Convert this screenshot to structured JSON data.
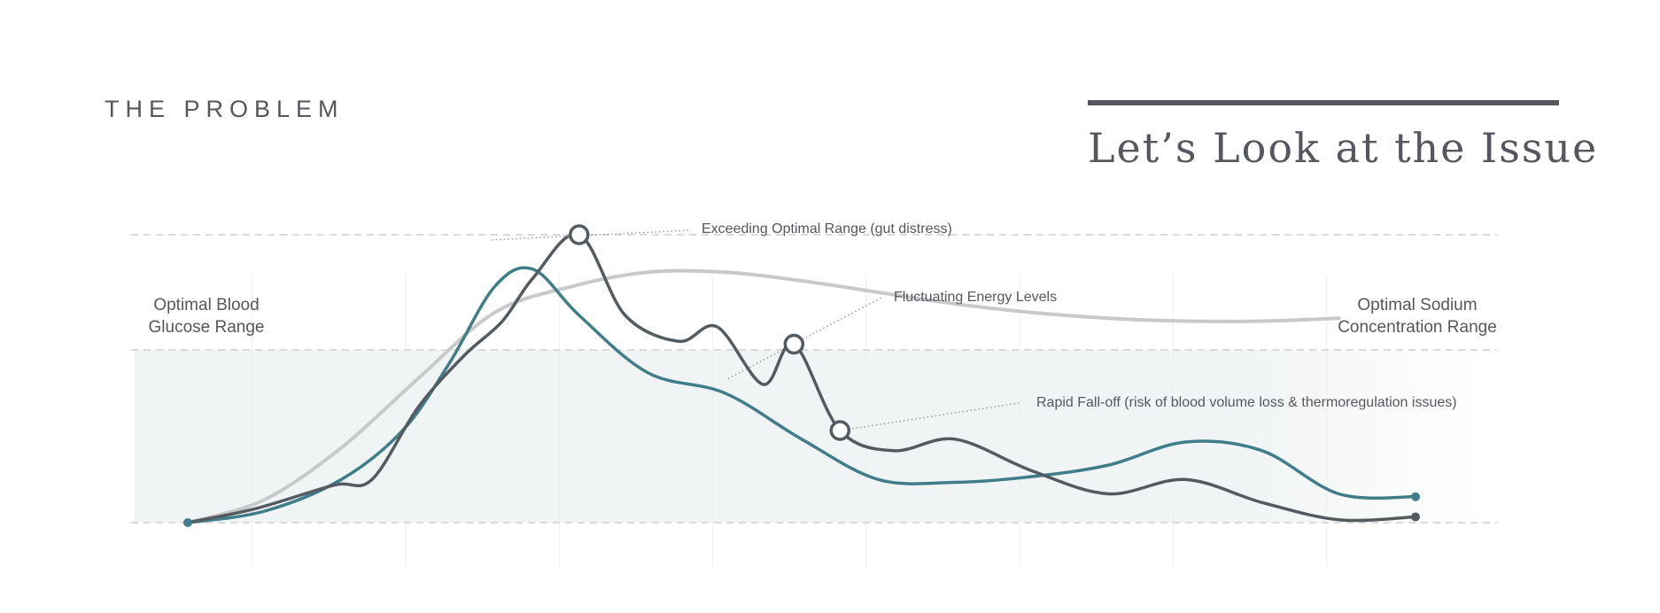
{
  "header": {
    "eyebrow": "THE PROBLEM",
    "title": "Let’s Look at the Issue"
  },
  "range_labels": {
    "left": [
      "Optimal Blood",
      "Glucose Range"
    ],
    "right": [
      "Optimal Sodium",
      "Concentration Range"
    ]
  },
  "annotations": [
    {
      "id": "peak",
      "text": "Exceeding Optimal Range (gut distress)",
      "x": 1.9,
      "y": 0.98
    },
    {
      "id": "fluctuating",
      "text": "Fluctuating Energy Levels",
      "x": 3.45,
      "y": 0.48
    },
    {
      "id": "falloff",
      "text": "Rapid Fall-off (risk of blood volume loss & thermoregulation issues)",
      "x": 4.25,
      "y": 0.32
    }
  ],
  "colors": {
    "text": "#55575f",
    "dark_series": "#545b60",
    "teal_series": "#3f7e89",
    "gray_series": "#c8c9ca",
    "grid": "#d8dadb",
    "band": "#f1f4f4"
  },
  "chart_data": {
    "type": "line",
    "title": "",
    "xlabel": "",
    "ylabel": "",
    "xlim": [
      0,
      8
    ],
    "ylim": [
      0,
      1
    ],
    "grid": {
      "vertical": true,
      "horizontal_dashed": [
        0,
        0.6,
        1.0
      ]
    },
    "optimal_band": [
      0,
      0.6
    ],
    "series": [
      {
        "id": "gray",
        "color": "#c8c9ca",
        "x": [
          0,
          0.5,
          1.0,
          1.5,
          2.0,
          2.5,
          3.0,
          3.5,
          4.0,
          4.5,
          5.0,
          5.5,
          6.0,
          6.5,
          7.0,
          7.5
        ],
        "y": [
          0,
          0.08,
          0.26,
          0.5,
          0.73,
          0.82,
          0.87,
          0.87,
          0.84,
          0.8,
          0.76,
          0.73,
          0.71,
          0.7,
          0.7,
          0.71
        ]
      },
      {
        "id": "teal",
        "color": "#3f7e89",
        "x": [
          0,
          0.5,
          1.0,
          1.4,
          1.7,
          2.0,
          2.25,
          2.55,
          3.0,
          3.5,
          4.0,
          4.5,
          5.0,
          5.5,
          6.0,
          6.5,
          7.0,
          7.5,
          8.0
        ],
        "y": [
          0,
          0.04,
          0.15,
          0.32,
          0.55,
          0.82,
          0.88,
          0.72,
          0.52,
          0.45,
          0.29,
          0.15,
          0.14,
          0.16,
          0.2,
          0.28,
          0.25,
          0.1,
          0.09
        ]
      },
      {
        "id": "dark",
        "color": "#545b60",
        "x": [
          0,
          0.45,
          0.95,
          1.2,
          1.5,
          1.8,
          2.05,
          2.25,
          2.55,
          2.85,
          3.2,
          3.45,
          3.75,
          3.95,
          4.25,
          4.6,
          5.0,
          5.5,
          6.0,
          6.5,
          7.0,
          7.5,
          8.0
        ],
        "y": [
          0,
          0.05,
          0.13,
          0.15,
          0.4,
          0.58,
          0.7,
          0.85,
          1.0,
          0.72,
          0.63,
          0.68,
          0.48,
          0.62,
          0.32,
          0.25,
          0.29,
          0.18,
          0.1,
          0.15,
          0.07,
          0.01,
          0.02
        ]
      }
    ],
    "markers": [
      {
        "series": "dark",
        "x": 2.55,
        "y": 1.0
      },
      {
        "series": "dark",
        "x": 3.95,
        "y": 0.62
      },
      {
        "series": "dark",
        "x": 4.25,
        "y": 0.32
      }
    ]
  }
}
